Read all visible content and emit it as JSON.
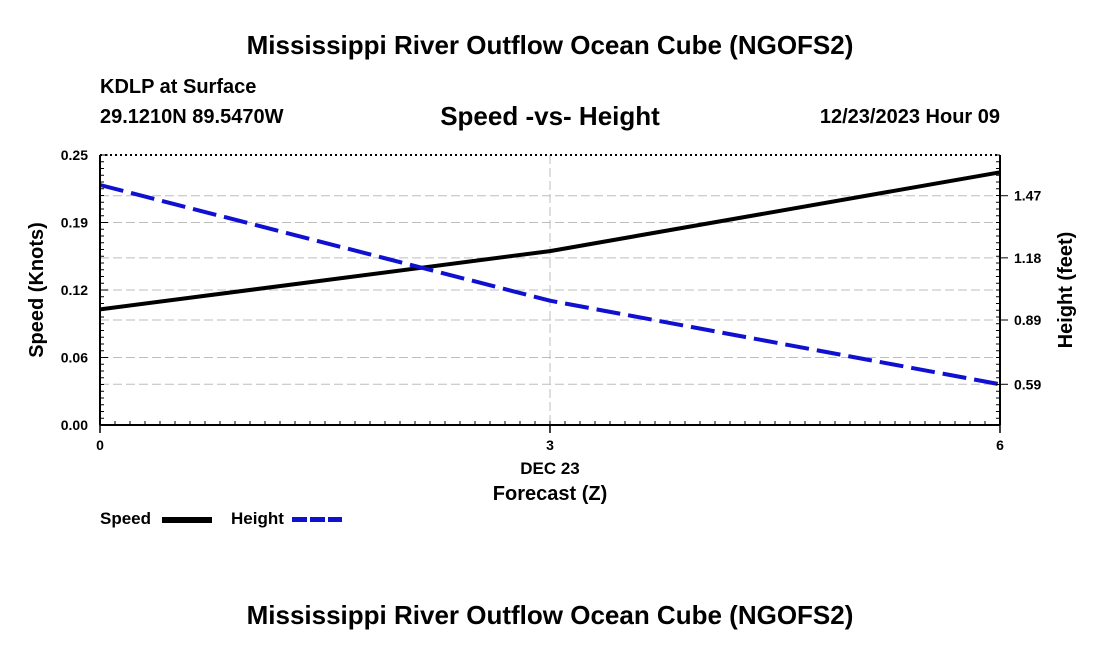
{
  "header": {
    "title": "Mississippi River Outflow Ocean Cube (NGOFS2)",
    "station": "KDLP at Surface",
    "coords": "29.1210N  89.5470W",
    "subtitle": "Speed -vs- Height",
    "datetime": "12/23/2023 Hour 09"
  },
  "footer": {
    "title": "Mississippi River Outflow Ocean Cube (NGOFS2)"
  },
  "legend": {
    "speed_label": "Speed",
    "height_label": "Height",
    "speed_color": "#000000",
    "height_color": "#1010d0"
  },
  "chart_data": {
    "type": "line",
    "title": "Speed -vs- Height",
    "xlabel": "Forecast (Z)",
    "xdate_label": "DEC 23",
    "ylabel_left": "Speed (Knots)",
    "ylabel_right": "Height (feet)",
    "xlim": [
      0,
      6
    ],
    "x_ticks": [
      0,
      3,
      6
    ],
    "x_tick_labels": [
      "0",
      "3",
      "6"
    ],
    "y_left_lim": [
      0,
      0.25
    ],
    "y_left_ticks": [
      0,
      0.0625,
      0.125,
      0.1875,
      0.25
    ],
    "y_left_tick_labels": [
      "0.00",
      "0.06",
      "0.12",
      "0.19",
      "0.25"
    ],
    "y_right_lim": [
      0.4,
      1.66
    ],
    "y_right_ticks": [
      0.59,
      0.89,
      1.18,
      1.47
    ],
    "y_right_tick_labels": [
      "0.59",
      "0.89",
      "1.18",
      "1.47"
    ],
    "grid": true,
    "series": [
      {
        "name": "Speed",
        "axis": "left",
        "style": "solid",
        "color": "#000000",
        "x": [
          0,
          3,
          6
        ],
        "values": [
          0.107,
          0.161,
          0.234
        ]
      },
      {
        "name": "Height",
        "axis": "right",
        "style": "dashed",
        "color": "#1010d0",
        "x": [
          0,
          3,
          6
        ],
        "values": [
          1.52,
          0.98,
          0.59
        ]
      }
    ]
  }
}
